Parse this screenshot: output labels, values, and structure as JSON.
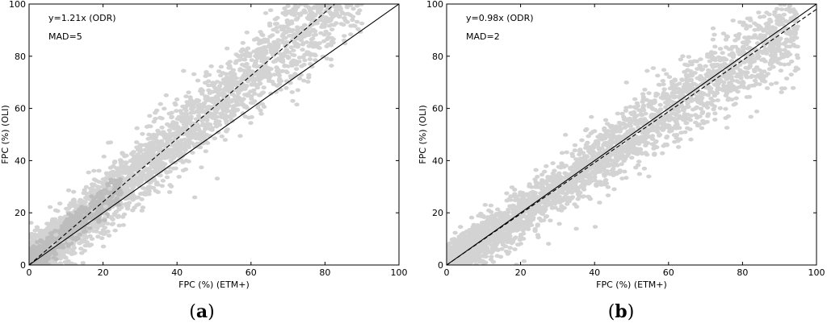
{
  "chart_data": [
    {
      "type": "scatter",
      "panel_label": "(a)",
      "panel_letter": "a",
      "xlabel": "FPC (%) (ETM+)",
      "ylabel": "FPC (%) (OLI)",
      "xlim": [
        0,
        100
      ],
      "ylim": [
        0,
        100
      ],
      "xticks": [
        "0",
        "20",
        "40",
        "60",
        "80",
        "100"
      ],
      "yticks": [
        "0",
        "20",
        "40",
        "60",
        "80",
        "100"
      ],
      "annotations": [
        "y=1.21x (ODR)",
        "MAD=5"
      ],
      "fit_slope": 1.21,
      "one_to_one_slope": 1.0,
      "point_color": "#d3d3d3",
      "dense_color": "#bdbdbd",
      "cloud": {
        "slope": 1.21,
        "spread": 4.5,
        "max_x": 90,
        "dense_max_x": 25
      }
    },
    {
      "type": "scatter",
      "panel_label": "(b)",
      "panel_letter": "b",
      "xlabel": "FPC (%) (ETM+)",
      "ylabel": "FPC (%) (OLI)",
      "xlim": [
        0,
        100
      ],
      "ylim": [
        0,
        100
      ],
      "xticks": [
        "0",
        "20",
        "40",
        "60",
        "80",
        "100"
      ],
      "yticks": [
        "0",
        "20",
        "40",
        "60",
        "80",
        "100"
      ],
      "annotations": [
        "y=0.98x (ODR)",
        "MAD=2"
      ],
      "fit_slope": 0.98,
      "one_to_one_slope": 1.0,
      "point_color": "#d3d3d3",
      "dense_color": "#cfcfcf",
      "cloud": {
        "slope": 0.98,
        "spread": 3.5,
        "max_x": 95,
        "dense_max_x": 0
      }
    }
  ]
}
